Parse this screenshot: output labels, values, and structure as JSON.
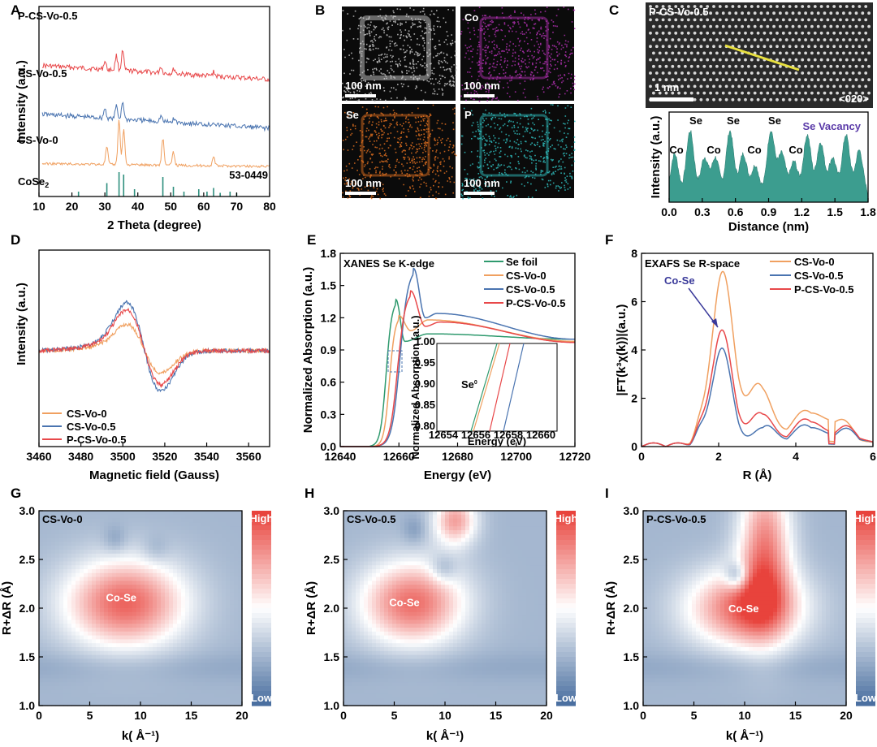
{
  "panel_letters": [
    "A",
    "B",
    "C",
    "D",
    "E",
    "F",
    "G",
    "H",
    "I"
  ],
  "colors": {
    "red": "#e8484a",
    "blue": "#4a74b0",
    "orange": "#f0a060",
    "teal": "#2e8f7e",
    "green": "#2f9a6e",
    "yellow": "#e8e040",
    "purple": "#5a3aa8",
    "hot": "#e8433c",
    "cold": "#4a6fa0"
  },
  "chart_data": [
    {
      "panel": "A",
      "type": "line",
      "title": "",
      "xlabel": "2 Theta (degree)",
      "ylabel": "Intensity (a.u.)",
      "xlim": [
        10,
        80
      ],
      "xticks": [
        10,
        20,
        30,
        40,
        50,
        60,
        70,
        80
      ],
      "series": [
        {
          "name": "P-CS-Vo-0.5",
          "color": "#e8484a",
          "offset": 3,
          "peaks": [
            [
              30,
              0.25
            ],
            [
              33.5,
              0.45
            ],
            [
              35.4,
              0.6
            ],
            [
              47,
              0.2
            ],
            [
              51,
              0.15
            ],
            [
              63,
              0.12
            ]
          ]
        },
        {
          "name": "CS-Vo-0.5",
          "color": "#4a74b0",
          "offset": 2,
          "peaks": [
            [
              30,
              0.3
            ],
            [
              33.5,
              0.4
            ],
            [
              35.4,
              0.55
            ],
            [
              47,
              0.18
            ],
            [
              51,
              0.12
            ],
            [
              63,
              0.1
            ]
          ]
        },
        {
          "name": "CS-Vo-0",
          "color": "#f0a060",
          "offset": 1,
          "peaks": [
            [
              30.6,
              0.4
            ],
            [
              34.3,
              1.0
            ],
            [
              35.7,
              0.8
            ],
            [
              47.6,
              0.6
            ],
            [
              50.8,
              0.3
            ],
            [
              63,
              0.2
            ]
          ]
        }
      ],
      "reference": {
        "name": "CoSe",
        "subscript": "2",
        "pdf": "53-0449",
        "sticks": [
          [
            22,
            0.2
          ],
          [
            30.6,
            0.55
          ],
          [
            34.3,
            1.0
          ],
          [
            35.7,
            0.9
          ],
          [
            39,
            0.3
          ],
          [
            47.6,
            0.8
          ],
          [
            50.8,
            0.4
          ],
          [
            54,
            0.2
          ],
          [
            58.5,
            0.3
          ],
          [
            61,
            0.2
          ],
          [
            63,
            0.35
          ],
          [
            65,
            0.15
          ],
          [
            68,
            0.2
          ],
          [
            70,
            0.15
          ]
        ]
      }
    },
    {
      "panel": "B",
      "type": "image",
      "tiles": [
        {
          "label": "",
          "scale": "100 nm",
          "tint": "#c8c8c8"
        },
        {
          "label": "Co",
          "scale": "100 nm",
          "tint": "#b030b0"
        },
        {
          "label": "Se",
          "scale": "100 nm",
          "tint": "#e07020"
        },
        {
          "label": "P",
          "scale": "100 nm",
          "tint": "#30c0c0"
        }
      ]
    },
    {
      "panel": "C",
      "type": "area",
      "image_label": "P-CS-Vo-0.5",
      "image_scale": "1 nm",
      "zone_axis": "<020>",
      "xlabel": "Distance (nm)",
      "ylabel": "Intensity (a.u.)",
      "xlim": [
        0,
        1.8
      ],
      "xticks": [
        0.0,
        0.3,
        0.6,
        0.9,
        1.2,
        1.5,
        1.8
      ],
      "profile_peaks": [
        [
          0.05,
          0.55
        ],
        [
          0.19,
          0.85
        ],
        [
          0.32,
          0.5
        ],
        [
          0.42,
          0.5
        ],
        [
          0.55,
          0.85
        ],
        [
          0.67,
          0.55
        ],
        [
          0.78,
          0.4
        ],
        [
          0.92,
          0.85
        ],
        [
          1.02,
          0.55
        ],
        [
          1.13,
          0.45
        ],
        [
          1.25,
          0.8
        ],
        [
          1.37,
          0.7
        ],
        [
          1.48,
          0.5
        ],
        [
          1.6,
          0.8
        ],
        [
          1.72,
          0.6
        ]
      ],
      "annotations": [
        "Co",
        "Se",
        "Co",
        "Se",
        "Co",
        "Se",
        "Co"
      ],
      "vacancy_label": "Se Vacancy"
    },
    {
      "panel": "D",
      "type": "line",
      "xlabel": "Magnetic field (Gauss)",
      "ylabel": "Intensity (a.u.)",
      "xlim": [
        3460,
        3570
      ],
      "xticks": [
        3460,
        3480,
        3500,
        3520,
        3540,
        3560
      ],
      "series": [
        {
          "name": "CS-Vo-0",
          "color": "#f0a060",
          "amp": 0.55
        },
        {
          "name": "CS-Vo-0.5",
          "color": "#4a74b0",
          "amp": 1.0
        },
        {
          "name": "P-CS-Vo-0.5",
          "color": "#e8484a",
          "amp": 0.85
        }
      ]
    },
    {
      "panel": "E",
      "type": "line",
      "title": "XANES Se K-edge",
      "xlabel": "Energy (eV)",
      "ylabel": "Normalized Absorption (a.u.)",
      "xlim": [
        12640,
        12720
      ],
      "ylim": [
        0,
        1.8
      ],
      "xticks": [
        12640,
        12660,
        12680,
        12700,
        12720
      ],
      "yticks": [
        0.0,
        0.3,
        0.6,
        0.9,
        1.2,
        1.5,
        1.8
      ],
      "series": [
        {
          "name": "Se foil",
          "color": "#2f9a6e",
          "e0": 12656.2,
          "points": [
            [
              12659,
              1.37
            ],
            [
              12662,
              0.98
            ],
            [
              12670,
              1.05
            ],
            [
              12720,
              1.0
            ]
          ]
        },
        {
          "name": "CS-Vo-0",
          "color": "#f0a060",
          "e0": 12657.5,
          "points": [
            [
              12660,
              1.22
            ],
            [
              12664,
              1.08
            ],
            [
              12670,
              1.18
            ],
            [
              12720,
              0.98
            ]
          ]
        },
        {
          "name": "CS-Vo-0.5",
          "color": "#4a74b0",
          "e0": 12658.8,
          "points": [
            [
              12665,
              1.66
            ],
            [
              12669,
              1.2
            ],
            [
              12673,
              1.24
            ],
            [
              12720,
              1.0
            ]
          ]
        },
        {
          "name": "P-CS-Vo-0.5",
          "color": "#e8484a",
          "e0": 12658.3,
          "points": [
            [
              12664,
              1.45
            ],
            [
              12669,
              1.12
            ],
            [
              12674,
              1.16
            ],
            [
              12720,
              0.97
            ]
          ]
        }
      ],
      "inset": {
        "xlabel": "Energy (eV)",
        "ylabel": "Normalized Absorption (a.u.)",
        "xticks": [
          12654,
          12656,
          12658,
          12660
        ],
        "yticks": [
          0.8,
          0.85,
          0.9,
          0.95,
          1.0
        ],
        "label": "Se",
        "label_sup": "0"
      }
    },
    {
      "panel": "F",
      "type": "line",
      "title": "EXAFS Se R-space",
      "xlabel": "R (Å)",
      "ylabel": "|FT(k³χ(k))|(a.u.)",
      "xlim": [
        0,
        6
      ],
      "ylim": [
        0,
        8
      ],
      "xticks": [
        0,
        2,
        4,
        6
      ],
      "yticks": [
        0,
        2,
        4,
        6,
        8
      ],
      "annotation": "Co-Se",
      "series": [
        {
          "name": "CS-Vo-0",
          "color": "#f0a060",
          "peaks": [
            [
              1.5,
              0.5,
              0.12
            ],
            [
              2.1,
              7.1,
              0.28
            ],
            [
              3.05,
              2.5,
              0.3
            ],
            [
              4.3,
              1.4,
              0.4
            ],
            [
              5.2,
              0.9,
              0.3
            ]
          ]
        },
        {
          "name": "CS-Vo-0.5",
          "color": "#4a74b0",
          "peaks": [
            [
              1.5,
              0.4,
              0.12
            ],
            [
              2.08,
              3.95,
              0.26
            ],
            [
              3.2,
              0.8,
              0.25
            ],
            [
              4.3,
              0.8,
              0.35
            ],
            [
              5.3,
              0.6,
              0.3
            ]
          ]
        },
        {
          "name": "P-CS-Vo-0.5",
          "color": "#e8484a",
          "peaks": [
            [
              1.5,
              0.45,
              0.12
            ],
            [
              2.08,
              4.7,
              0.27
            ],
            [
              3.1,
              1.35,
              0.28
            ],
            [
              4.3,
              1.05,
              0.35
            ],
            [
              5.3,
              0.7,
              0.3
            ]
          ]
        }
      ]
    },
    {
      "panel": "G",
      "type": "heatmap",
      "title": "CS-Vo-0",
      "xlabel": "k( Å⁻¹)",
      "ylabel": "R+ΔR (Å)",
      "xlim": [
        0,
        20
      ],
      "ylim": [
        1.0,
        3.0
      ],
      "xticks": [
        0,
        5,
        10,
        15,
        20
      ],
      "yticks": [
        1.0,
        1.5,
        2.0,
        2.5,
        3.0
      ],
      "spot_label": "Co-Se",
      "spot_label_pos": [
        8.1,
        2.07
      ],
      "colorbar": {
        "high": "High",
        "low": "Low"
      },
      "blobs": [
        [
          8.5,
          2.05,
          4.2,
          0.32,
          1.2
        ],
        [
          7.5,
          2.7,
          0.8,
          0.1,
          -0.2
        ],
        [
          11.5,
          2.6,
          0.9,
          0.1,
          -0.15
        ]
      ]
    },
    {
      "panel": "H",
      "type": "heatmap",
      "title": "CS-Vo-0.5",
      "xlabel": "k( Å⁻¹)",
      "ylabel": "R+ΔR (Å)",
      "xlim": [
        0,
        20
      ],
      "ylim": [
        1.0,
        3.0
      ],
      "xticks": [
        0,
        5,
        10,
        15,
        20
      ],
      "yticks": [
        1.0,
        1.5,
        2.0,
        2.5,
        3.0
      ],
      "spot_label": "Co-Se",
      "spot_label_pos": [
        6.0,
        2.02
      ],
      "colorbar": {
        "high": "High",
        "low": "Low"
      },
      "blobs": [
        [
          6.8,
          2.05,
          3.6,
          0.3,
          1.15
        ],
        [
          11,
          2.9,
          1.5,
          0.18,
          0.9
        ],
        [
          9.8,
          2.4,
          0.9,
          0.1,
          -0.3
        ],
        [
          7,
          2.8,
          0.8,
          0.1,
          -0.2
        ]
      ]
    },
    {
      "panel": "I",
      "type": "heatmap",
      "title": "P-CS-Vo-0.5",
      "xlabel": "k( Å⁻¹)",
      "ylabel": "R+ΔR (Å)",
      "xlim": [
        0,
        20
      ],
      "ylim": [
        1.0,
        3.0
      ],
      "xticks": [
        0,
        5,
        10,
        15,
        20
      ],
      "yticks": [
        1.0,
        1.5,
        2.0,
        2.5,
        3.0
      ],
      "spot_label": "Co-Se",
      "spot_label_pos": [
        9.9,
        1.96
      ],
      "colorbar": {
        "high": "High",
        "low": "Low"
      },
      "blobs": [
        [
          10,
          2.0,
          4.0,
          0.28,
          1.15
        ],
        [
          12,
          2.6,
          1.8,
          0.55,
          1.05
        ],
        [
          9.2,
          2.33,
          0.8,
          0.1,
          -0.6
        ]
      ]
    }
  ]
}
